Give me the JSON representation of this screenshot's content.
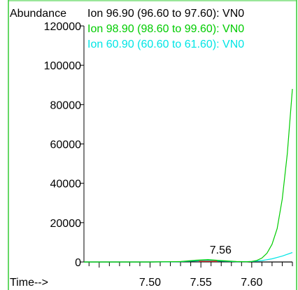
{
  "chart_data": {
    "type": "line",
    "ylabel": "Abundance",
    "xlabel": "Time-->",
    "xlim": [
      7.435,
      7.64
    ],
    "ylim": [
      0,
      120000
    ],
    "x_ticks": [
      7.5,
      7.55,
      7.6
    ],
    "x_tick_labels": [
      "7.50",
      "7.55",
      "7.60"
    ],
    "y_ticks": [
      0,
      20000,
      40000,
      60000,
      80000,
      100000,
      120000
    ],
    "y_tick_labels": [
      "0",
      "20000",
      "40000",
      "60000",
      "80000",
      "100000",
      "120000"
    ],
    "legend_position": "top",
    "peak_annotation": {
      "label": "7.56",
      "x": 7.557,
      "y": 1200
    },
    "series": [
      {
        "name": "Ion  96.90 (96.60 to 97.60): VN0",
        "color": "#000000",
        "x": [
          7.435,
          7.5,
          7.53,
          7.545,
          7.557,
          7.57,
          7.585,
          7.6,
          7.615,
          7.64
        ],
        "y": [
          0,
          0,
          100,
          500,
          700,
          400,
          100,
          0,
          0,
          0
        ]
      },
      {
        "name": "Ion  98.90 (98.60 to 99.60): VN0",
        "color": "#00cc00",
        "x": [
          7.435,
          7.5,
          7.53,
          7.545,
          7.557,
          7.57,
          7.585,
          7.595,
          7.6,
          7.605,
          7.61,
          7.615,
          7.62,
          7.625,
          7.63,
          7.635,
          7.64
        ],
        "y": [
          0,
          0,
          200,
          900,
          1200,
          700,
          200,
          100,
          300,
          800,
          2000,
          4500,
          9000,
          17000,
          32000,
          55000,
          88000
        ]
      },
      {
        "name": "Ion  60.90 (60.60 to 61.60): VN0",
        "color": "#00e5e5",
        "x": [
          7.435,
          7.5,
          7.53,
          7.545,
          7.557,
          7.57,
          7.585,
          7.6,
          7.61,
          7.62,
          7.63,
          7.64
        ],
        "y": [
          0,
          0,
          150,
          600,
          800,
          500,
          150,
          200,
          700,
          1600,
          3000,
          4800
        ]
      }
    ]
  }
}
